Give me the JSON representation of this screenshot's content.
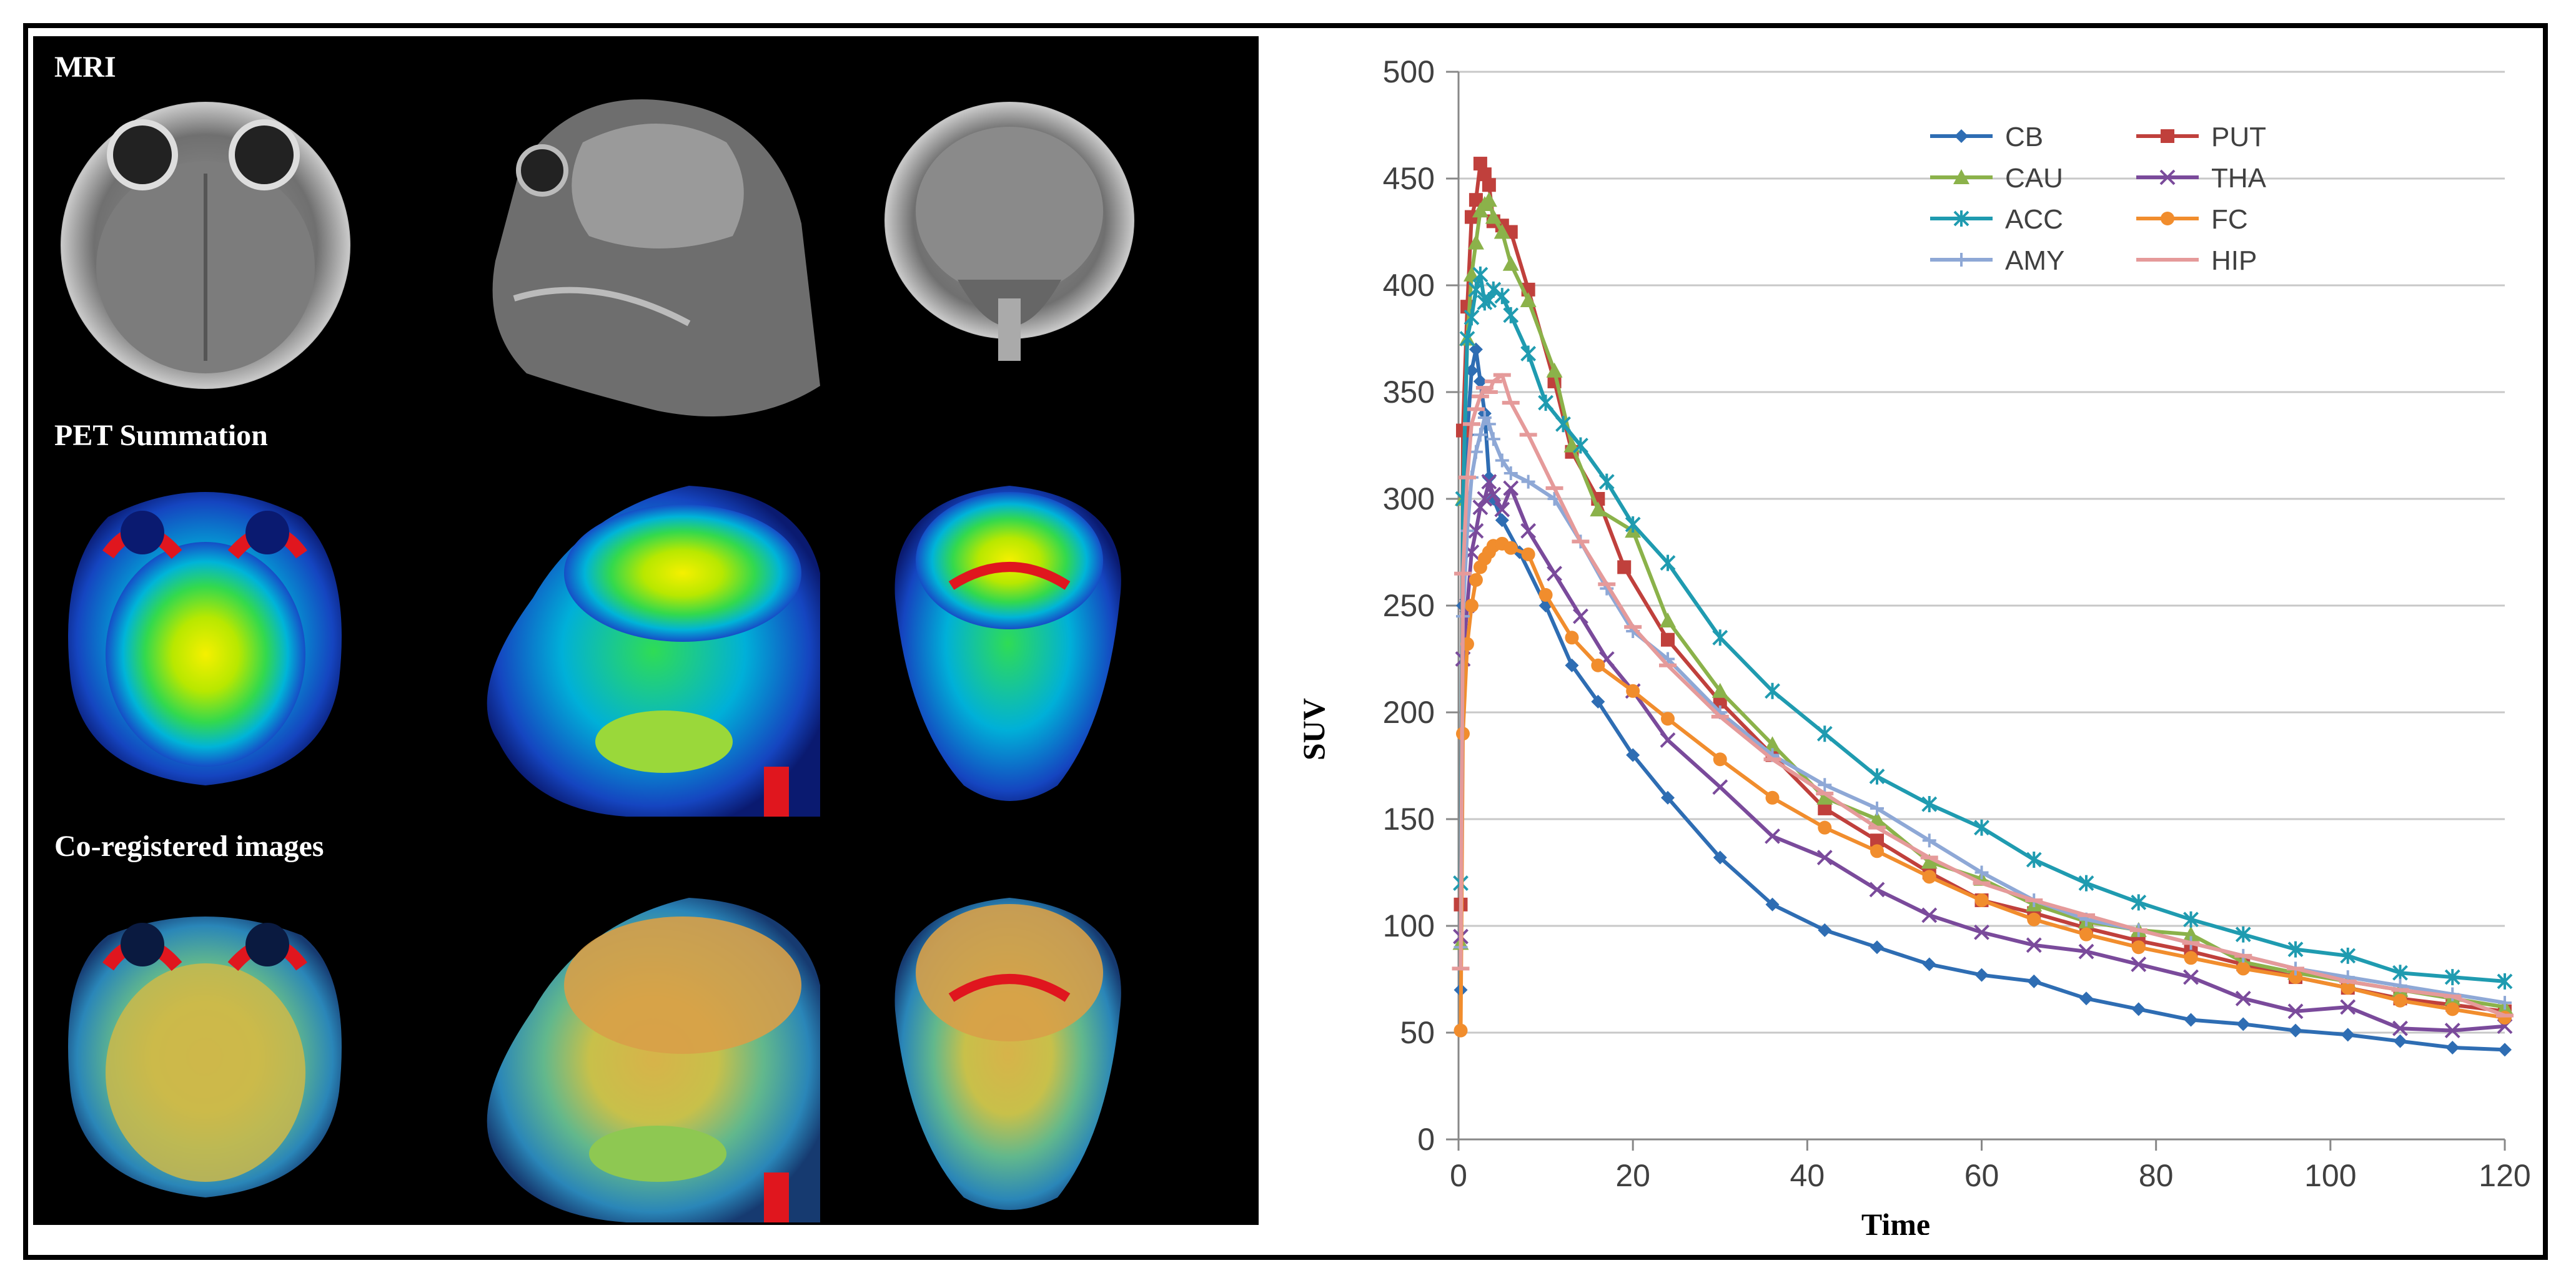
{
  "panel_labels": {
    "mri": "MRI",
    "pet": "PET Summation",
    "coreg": "Co-registered images"
  },
  "colors": {
    "CB": "#2e6db3",
    "PUT": "#c0403c",
    "CAU": "#8bb24a",
    "THA": "#7a4a9b",
    "ACC": "#1f9bb0",
    "FC": "#f18d2d",
    "AMY": "#8ea8d6",
    "HIP": "#e59a9a"
  },
  "chart_data": {
    "type": "line",
    "title": "",
    "xlabel": "Time",
    "ylabel": "SUV",
    "xlim": [
      0,
      120
    ],
    "ylim": [
      0,
      500
    ],
    "xticks": [
      0,
      20,
      40,
      60,
      80,
      100,
      120
    ],
    "yticks": [
      0,
      50,
      100,
      150,
      200,
      250,
      300,
      350,
      400,
      450,
      500
    ],
    "grid": "horizontal",
    "legend_position": "top-right",
    "series": [
      {
        "name": "CB",
        "marker": "diamond",
        "x": [
          0.25,
          0.5,
          1,
          1.5,
          2,
          2.5,
          3,
          3.5,
          4,
          5,
          7,
          10,
          13,
          16,
          20,
          24,
          30,
          36,
          42,
          48,
          54,
          60,
          66,
          72,
          78,
          84,
          90,
          96,
          102,
          108,
          114,
          120
        ],
        "y": [
          70,
          250,
          330,
          360,
          370,
          355,
          340,
          310,
          300,
          290,
          275,
          250,
          222,
          205,
          180,
          160,
          132,
          110,
          98,
          90,
          82,
          77,
          74,
          66,
          61,
          56,
          54,
          51,
          49,
          46,
          43,
          42
        ]
      },
      {
        "name": "PUT",
        "marker": "square",
        "x": [
          0.25,
          0.5,
          1,
          1.5,
          2,
          2.5,
          3,
          3.5,
          4,
          5,
          6,
          8,
          11,
          13,
          16,
          19,
          24,
          30,
          36,
          42,
          48,
          54,
          60,
          66,
          72,
          78,
          84,
          90,
          96,
          102,
          108,
          114,
          120
        ],
        "y": [
          110,
          332,
          390,
          432,
          440,
          457,
          452,
          447,
          430,
          428,
          425,
          398,
          355,
          322,
          300,
          268,
          234,
          205,
          180,
          155,
          140,
          125,
          112,
          106,
          99,
          93,
          88,
          82,
          76,
          71,
          66,
          63,
          60
        ]
      },
      {
        "name": "CAU",
        "marker": "triangle",
        "x": [
          0.25,
          0.5,
          1,
          1.5,
          2,
          2.5,
          3,
          3.5,
          4,
          5,
          6,
          8,
          11,
          13,
          16,
          20,
          24,
          30,
          36,
          42,
          48,
          54,
          60,
          66,
          72,
          78,
          84,
          90,
          96,
          102,
          108,
          114,
          120
        ],
        "y": [
          92,
          300,
          375,
          405,
          420,
          435,
          438,
          440,
          432,
          425,
          410,
          393,
          360,
          325,
          295,
          285,
          243,
          210,
          185,
          160,
          150,
          130,
          122,
          110,
          102,
          98,
          96,
          83,
          78,
          74,
          70,
          66,
          62
        ]
      },
      {
        "name": "THA",
        "marker": "x",
        "x": [
          0.25,
          0.5,
          1,
          1.5,
          2,
          2.5,
          3,
          3.5,
          4,
          5,
          6,
          8,
          11,
          14,
          17,
          20,
          24,
          30,
          36,
          42,
          48,
          54,
          60,
          66,
          72,
          78,
          84,
          90,
          96,
          102,
          108,
          114,
          120
        ],
        "y": [
          95,
          225,
          250,
          275,
          285,
          296,
          300,
          308,
          302,
          295,
          305,
          285,
          265,
          245,
          225,
          210,
          187,
          165,
          142,
          132,
          117,
          105,
          97,
          91,
          88,
          82,
          76,
          66,
          60,
          62,
          52,
          51,
          53
        ]
      },
      {
        "name": "ACC",
        "marker": "star",
        "x": [
          0.25,
          0.5,
          1,
          1.5,
          2,
          2.5,
          3,
          3.5,
          4,
          5,
          6,
          8,
          10,
          12,
          14,
          17,
          20,
          24,
          30,
          36,
          42,
          48,
          54,
          60,
          66,
          72,
          78,
          84,
          90,
          96,
          102,
          108,
          114,
          120
        ],
        "y": [
          120,
          300,
          375,
          385,
          398,
          405,
          392,
          393,
          398,
          395,
          386,
          368,
          345,
          335,
          325,
          308,
          288,
          270,
          235,
          210,
          190,
          170,
          157,
          146,
          131,
          120,
          111,
          103,
          96,
          89,
          86,
          78,
          76,
          74
        ]
      },
      {
        "name": "FC",
        "marker": "circle",
        "x": [
          0.25,
          0.5,
          1,
          1.5,
          2,
          2.5,
          3,
          3.5,
          4,
          5,
          6,
          8,
          10,
          13,
          16,
          20,
          24,
          30,
          36,
          42,
          48,
          54,
          60,
          66,
          72,
          78,
          84,
          90,
          96,
          102,
          108,
          114,
          120
        ],
        "y": [
          51,
          190,
          232,
          250,
          262,
          268,
          272,
          275,
          278,
          279,
          277,
          274,
          255,
          235,
          222,
          210,
          197,
          178,
          160,
          146,
          135,
          123,
          112,
          103,
          96,
          90,
          85,
          80,
          76,
          71,
          65,
          61,
          57
        ]
      },
      {
        "name": "AMY",
        "marker": "plus",
        "x": [
          0.25,
          0.5,
          1,
          1.5,
          2,
          2.5,
          3,
          3.5,
          4,
          5,
          6,
          8,
          11,
          14,
          17,
          20,
          24,
          30,
          36,
          42,
          48,
          54,
          60,
          66,
          72,
          78,
          84,
          90,
          96,
          102,
          108,
          114,
          120
        ],
        "y": [
          90,
          245,
          285,
          310,
          322,
          330,
          338,
          335,
          328,
          318,
          312,
          308,
          300,
          280,
          258,
          238,
          225,
          200,
          180,
          166,
          155,
          140,
          125,
          112,
          103,
          98,
          92,
          86,
          80,
          76,
          72,
          68,
          64
        ]
      },
      {
        "name": "HIP",
        "marker": "dash",
        "x": [
          0.25,
          0.5,
          1,
          1.5,
          2,
          2.5,
          3,
          3.5,
          4,
          5,
          6,
          8,
          11,
          14,
          17,
          20,
          24,
          30,
          36,
          42,
          48,
          54,
          60,
          66,
          72,
          78,
          84,
          90,
          96,
          102,
          108,
          114,
          120
        ],
        "y": [
          80,
          265,
          310,
          335,
          342,
          348,
          352,
          350,
          355,
          358,
          345,
          330,
          305,
          280,
          260,
          240,
          222,
          198,
          178,
          162,
          146,
          132,
          120,
          112,
          105,
          98,
          92,
          86,
          80,
          74,
          70,
          67,
          58
        ]
      }
    ]
  }
}
